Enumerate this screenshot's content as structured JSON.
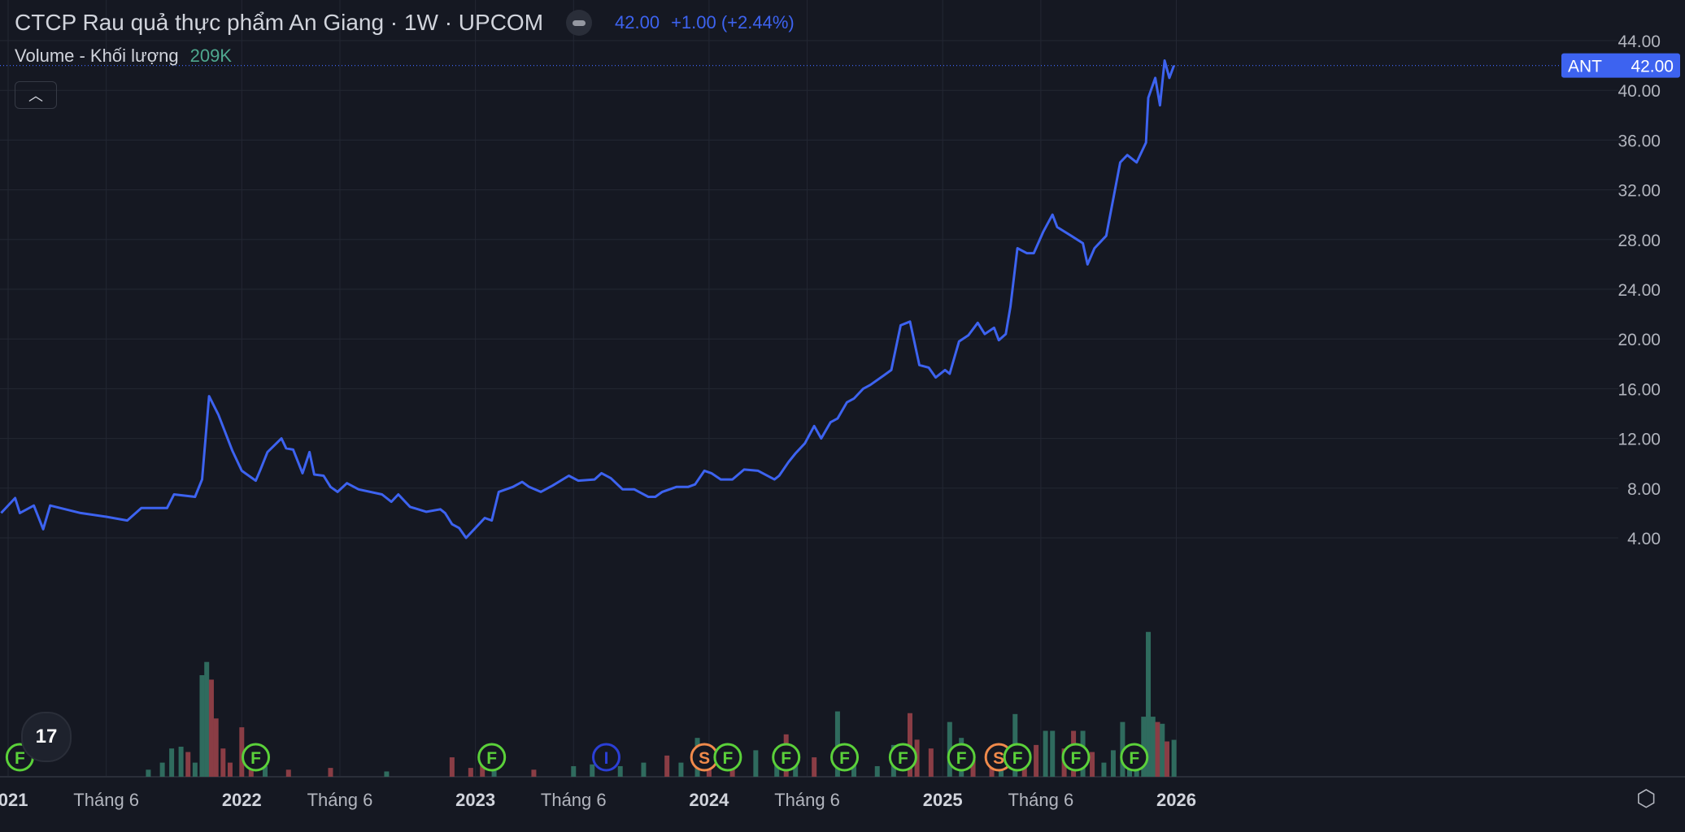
{
  "header": {
    "title": "CTCP Rau quả thực phẩm An Giang · 1W · UPCOM",
    "price": "42.00",
    "change": "+1.00 (+2.44%)",
    "volume_label": "Volume - Khối lượng",
    "volume_value": "209K"
  },
  "price_tag": {
    "symbol": "ANT",
    "value": "42.00"
  },
  "colors": {
    "line": "#3d63f0",
    "up": "#2f6b5e",
    "down": "#8a3d45",
    "event_f": "#5bd13a",
    "event_s": "#f08a4b",
    "event_i": "#2b3fd6"
  },
  "chart_data": {
    "type": "line",
    "title": "CTCP Rau quả thực phẩm An Giang · 1W · UPCOM",
    "ylim": [
      0,
      46
    ],
    "y_ticks": [
      "4.00",
      "8.00",
      "12.00",
      "16.00",
      "20.00",
      "24.00",
      "28.00",
      "32.00",
      "36.00",
      "40.00",
      "44.00"
    ],
    "y_tick_values": [
      4,
      8,
      12,
      16,
      20,
      24,
      28,
      32,
      36,
      40,
      44
    ],
    "x_ticks": [
      {
        "label": "2021",
        "x": 2021.0,
        "bold": true
      },
      {
        "label": "Tháng 6",
        "x": 2021.42,
        "bold": false
      },
      {
        "label": "2022",
        "x": 2022.0,
        "bold": true
      },
      {
        "label": "Tháng 6",
        "x": 2022.42,
        "bold": false
      },
      {
        "label": "2023",
        "x": 2023.0,
        "bold": true
      },
      {
        "label": "Tháng 6",
        "x": 2023.42,
        "bold": false
      },
      {
        "label": "2024",
        "x": 2024.0,
        "bold": true
      },
      {
        "label": "Tháng 6",
        "x": 2024.42,
        "bold": false
      },
      {
        "label": "2025",
        "x": 2025.0,
        "bold": true
      },
      {
        "label": "Tháng 6",
        "x": 2025.42,
        "bold": false
      },
      {
        "label": "2026",
        "x": 2026.0,
        "bold": true
      }
    ],
    "series": [
      {
        "name": "ANT",
        "points": [
          [
            2020.97,
            6.0
          ],
          [
            2021.03,
            7.2
          ],
          [
            2021.05,
            6.0
          ],
          [
            2021.11,
            6.6
          ],
          [
            2021.15,
            4.7
          ],
          [
            2021.18,
            6.6
          ],
          [
            2021.31,
            6.0
          ],
          [
            2021.42,
            5.7
          ],
          [
            2021.51,
            5.4
          ],
          [
            2021.57,
            6.4
          ],
          [
            2021.68,
            6.4
          ],
          [
            2021.71,
            7.5
          ],
          [
            2021.8,
            7.3
          ],
          [
            2021.83,
            8.7
          ],
          [
            2021.86,
            15.4
          ],
          [
            2021.9,
            13.9
          ],
          [
            2021.96,
            11.0
          ],
          [
            2022.0,
            9.4
          ],
          [
            2022.06,
            8.6
          ],
          [
            2022.08,
            9.5
          ],
          [
            2022.11,
            10.9
          ],
          [
            2022.17,
            12.0
          ],
          [
            2022.19,
            11.2
          ],
          [
            2022.22,
            11.1
          ],
          [
            2022.26,
            9.2
          ],
          [
            2022.29,
            10.9
          ],
          [
            2022.31,
            9.1
          ],
          [
            2022.35,
            9.0
          ],
          [
            2022.38,
            8.1
          ],
          [
            2022.41,
            7.7
          ],
          [
            2022.45,
            8.4
          ],
          [
            2022.5,
            7.9
          ],
          [
            2022.6,
            7.5
          ],
          [
            2022.64,
            6.9
          ],
          [
            2022.67,
            7.5
          ],
          [
            2022.72,
            6.5
          ],
          [
            2022.79,
            6.1
          ],
          [
            2022.85,
            6.3
          ],
          [
            2022.87,
            6.0
          ],
          [
            2022.9,
            5.1
          ],
          [
            2022.93,
            4.8
          ],
          [
            2022.96,
            4.0
          ],
          [
            2023.0,
            4.8
          ],
          [
            2023.04,
            5.6
          ],
          [
            2023.07,
            5.4
          ],
          [
            2023.1,
            7.7
          ],
          [
            2023.16,
            8.1
          ],
          [
            2023.2,
            8.5
          ],
          [
            2023.23,
            8.1
          ],
          [
            2023.28,
            7.7
          ],
          [
            2023.33,
            8.2
          ],
          [
            2023.4,
            9.0
          ],
          [
            2023.44,
            8.6
          ],
          [
            2023.51,
            8.7
          ],
          [
            2023.54,
            9.2
          ],
          [
            2023.58,
            8.8
          ],
          [
            2023.63,
            7.9
          ],
          [
            2023.68,
            7.9
          ],
          [
            2023.74,
            7.3
          ],
          [
            2023.77,
            7.3
          ],
          [
            2023.8,
            7.7
          ],
          [
            2023.86,
            8.1
          ],
          [
            2023.91,
            8.1
          ],
          [
            2023.94,
            8.3
          ],
          [
            2023.98,
            9.4
          ],
          [
            2024.01,
            9.2
          ],
          [
            2024.05,
            8.7
          ],
          [
            2024.1,
            8.7
          ],
          [
            2024.15,
            9.5
          ],
          [
            2024.21,
            9.4
          ],
          [
            2024.28,
            8.7
          ],
          [
            2024.3,
            9.0
          ],
          [
            2024.34,
            10.1
          ],
          [
            2024.37,
            10.8
          ],
          [
            2024.41,
            11.6
          ],
          [
            2024.45,
            13.0
          ],
          [
            2024.48,
            12.0
          ],
          [
            2024.52,
            13.3
          ],
          [
            2024.55,
            13.6
          ],
          [
            2024.59,
            14.9
          ],
          [
            2024.62,
            15.2
          ],
          [
            2024.66,
            16.0
          ],
          [
            2024.69,
            16.3
          ],
          [
            2024.75,
            17.1
          ],
          [
            2024.78,
            17.5
          ],
          [
            2024.82,
            21.1
          ],
          [
            2024.86,
            21.4
          ],
          [
            2024.9,
            17.9
          ],
          [
            2024.94,
            17.7
          ],
          [
            2024.97,
            16.9
          ],
          [
            2025.01,
            17.5
          ],
          [
            2025.03,
            17.2
          ],
          [
            2025.07,
            19.8
          ],
          [
            2025.11,
            20.3
          ],
          [
            2025.15,
            21.3
          ],
          [
            2025.18,
            20.4
          ],
          [
            2025.22,
            20.9
          ],
          [
            2025.24,
            19.9
          ],
          [
            2025.27,
            20.4
          ],
          [
            2025.29,
            22.6
          ],
          [
            2025.32,
            27.3
          ],
          [
            2025.36,
            26.9
          ],
          [
            2025.39,
            26.9
          ],
          [
            2025.43,
            28.6
          ],
          [
            2025.47,
            30.0
          ],
          [
            2025.49,
            29.0
          ],
          [
            2025.55,
            28.3
          ],
          [
            2025.6,
            27.7
          ],
          [
            2025.62,
            26.0
          ],
          [
            2025.65,
            27.3
          ],
          [
            2025.7,
            28.3
          ],
          [
            2025.76,
            34.2
          ],
          [
            2025.79,
            34.8
          ],
          [
            2025.83,
            34.2
          ],
          [
            2025.87,
            35.8
          ],
          [
            2025.88,
            39.4
          ],
          [
            2025.91,
            41.0
          ],
          [
            2025.93,
            38.8
          ],
          [
            2025.95,
            42.4
          ],
          [
            2025.97,
            41.0
          ],
          [
            2025.99,
            42.0
          ]
        ]
      }
    ],
    "volume": [
      [
        2021.6,
        40,
        "up"
      ],
      [
        2021.66,
        80,
        "up"
      ],
      [
        2021.7,
        160,
        "up"
      ],
      [
        2021.74,
        170,
        "up"
      ],
      [
        2021.77,
        140,
        "down"
      ],
      [
        2021.8,
        80,
        "up"
      ],
      [
        2021.83,
        575,
        "up"
      ],
      [
        2021.85,
        650,
        "up"
      ],
      [
        2021.87,
        550,
        "down"
      ],
      [
        2021.89,
        330,
        "down"
      ],
      [
        2021.92,
        160,
        "down"
      ],
      [
        2021.95,
        80,
        "down"
      ],
      [
        2022.0,
        280,
        "down"
      ],
      [
        2022.04,
        110,
        "down"
      ],
      [
        2022.1,
        60,
        "up"
      ],
      [
        2022.2,
        40,
        "down"
      ],
      [
        2022.38,
        50,
        "down"
      ],
      [
        2022.62,
        30,
        "up"
      ],
      [
        2022.9,
        110,
        "down"
      ],
      [
        2022.98,
        50,
        "down"
      ],
      [
        2023.03,
        90,
        "down"
      ],
      [
        2023.08,
        80,
        "up"
      ],
      [
        2023.25,
        40,
        "down"
      ],
      [
        2023.42,
        60,
        "up"
      ],
      [
        2023.5,
        70,
        "up"
      ],
      [
        2023.62,
        60,
        "up"
      ],
      [
        2023.72,
        80,
        "up"
      ],
      [
        2023.82,
        120,
        "down"
      ],
      [
        2023.88,
        80,
        "up"
      ],
      [
        2023.95,
        220,
        "up"
      ],
      [
        2024.0,
        120,
        "down"
      ],
      [
        2024.1,
        140,
        "down"
      ],
      [
        2024.2,
        150,
        "up"
      ],
      [
        2024.29,
        160,
        "up"
      ],
      [
        2024.33,
        240,
        "down"
      ],
      [
        2024.37,
        120,
        "up"
      ],
      [
        2024.45,
        110,
        "down"
      ],
      [
        2024.55,
        370,
        "up"
      ],
      [
        2024.62,
        120,
        "up"
      ],
      [
        2024.72,
        60,
        "up"
      ],
      [
        2024.79,
        180,
        "up"
      ],
      [
        2024.86,
        360,
        "down"
      ],
      [
        2024.89,
        210,
        "down"
      ],
      [
        2024.95,
        160,
        "down"
      ],
      [
        2025.03,
        310,
        "up"
      ],
      [
        2025.08,
        220,
        "up"
      ],
      [
        2025.13,
        100,
        "down"
      ],
      [
        2025.21,
        170,
        "down"
      ],
      [
        2025.25,
        120,
        "up"
      ],
      [
        2025.31,
        355,
        "up"
      ],
      [
        2025.35,
        100,
        "down"
      ],
      [
        2025.4,
        180,
        "down"
      ],
      [
        2025.44,
        260,
        "up"
      ],
      [
        2025.47,
        260,
        "up"
      ],
      [
        2025.52,
        160,
        "down"
      ],
      [
        2025.56,
        260,
        "down"
      ],
      [
        2025.6,
        260,
        "up"
      ],
      [
        2025.64,
        140,
        "down"
      ],
      [
        2025.69,
        80,
        "up"
      ],
      [
        2025.73,
        150,
        "up"
      ],
      [
        2025.77,
        310,
        "up"
      ],
      [
        2025.8,
        130,
        "up"
      ],
      [
        2025.83,
        170,
        "up"
      ],
      [
        2025.86,
        340,
        "up"
      ],
      [
        2025.88,
        820,
        "up"
      ],
      [
        2025.9,
        340,
        "up"
      ],
      [
        2025.92,
        310,
        "down"
      ],
      [
        2025.94,
        300,
        "up"
      ],
      [
        2025.96,
        200,
        "down"
      ],
      [
        2025.99,
        209,
        "up"
      ]
    ],
    "events": [
      {
        "label": "F",
        "x": 2021.05,
        "kind": "f"
      },
      {
        "label": "F",
        "x": 2022.06,
        "kind": "f"
      },
      {
        "label": "F",
        "x": 2023.07,
        "kind": "f"
      },
      {
        "label": "I",
        "x": 2023.56,
        "kind": "i"
      },
      {
        "label": "S",
        "x": 2023.98,
        "kind": "s"
      },
      {
        "label": "F",
        "x": 2024.08,
        "kind": "f"
      },
      {
        "label": "F",
        "x": 2024.33,
        "kind": "f"
      },
      {
        "label": "F",
        "x": 2024.58,
        "kind": "f"
      },
      {
        "label": "F",
        "x": 2024.83,
        "kind": "f"
      },
      {
        "label": "F",
        "x": 2025.08,
        "kind": "f"
      },
      {
        "label": "S",
        "x": 2025.24,
        "kind": "s"
      },
      {
        "label": "F",
        "x": 2025.32,
        "kind": "f"
      },
      {
        "label": "F",
        "x": 2025.57,
        "kind": "f"
      },
      {
        "label": "F",
        "x": 2025.82,
        "kind": "f"
      }
    ]
  }
}
